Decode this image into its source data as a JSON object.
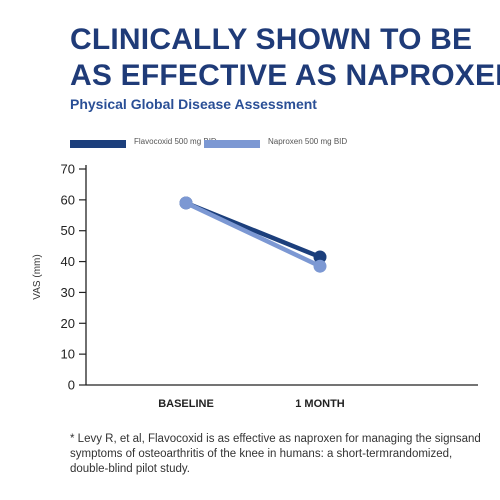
{
  "headline": {
    "line1": "CLINICALLY SHOWN TO BE",
    "line2": "AS EFFECTIVE AS NAPROXEN"
  },
  "chart_data": {
    "type": "line",
    "title": "Physical Global Disease Assessment",
    "ylabel": "VAS (mm)",
    "xlabel": "",
    "categories": [
      "BASELINE",
      "1 MONTH"
    ],
    "ylim": [
      0,
      70
    ],
    "yticks": [
      0,
      10,
      20,
      30,
      40,
      50,
      60,
      70
    ],
    "grid": false,
    "legend_position": "top",
    "series": [
      {
        "name": "Flavocoxid 500 mg BID",
        "values": [
          59,
          41.5
        ],
        "color": "#1c3f7c"
      },
      {
        "name": "Naproxen 500 mg BID",
        "values": [
          59,
          38.5
        ],
        "color": "#7c98d3"
      }
    ]
  },
  "footnote": "* Levy R, et al, Flavocoxid is as effective as naproxen for managing the signsand symptoms of osteoarthritis of the knee in humans: a short-termrandomized, double-blind pilot study."
}
